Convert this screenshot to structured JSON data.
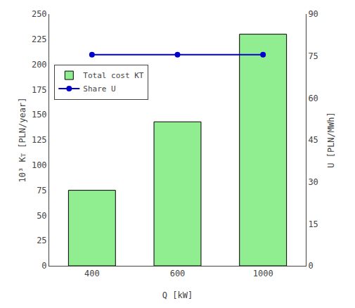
{
  "chart_data": {
    "type": "bar",
    "categories": [
      "400",
      "600",
      "1000"
    ],
    "xlabel": "Q [kW]",
    "ylabel": "10³ Kᴛ [PLN/year]",
    "y2label": "U [PLN/MWh]",
    "series": [
      {
        "name": "Total cost KT",
        "type": "bar",
        "color": "#90EE90",
        "values": [
          75,
          143,
          230
        ]
      },
      {
        "name": "Share U",
        "type": "line",
        "axis": "y2",
        "color": "#0000CC",
        "marker": "circle",
        "values": [
          75.5,
          75.5,
          75.5
        ]
      }
    ],
    "ylim": [
      0,
      250
    ],
    "yticks": [
      0,
      25,
      50,
      75,
      100,
      125,
      150,
      175,
      200,
      225,
      250
    ],
    "y2lim": [
      0,
      90
    ],
    "y2ticks": [
      0,
      15,
      30,
      45,
      60,
      75,
      90
    ],
    "grid": false,
    "legend": "upper left"
  }
}
